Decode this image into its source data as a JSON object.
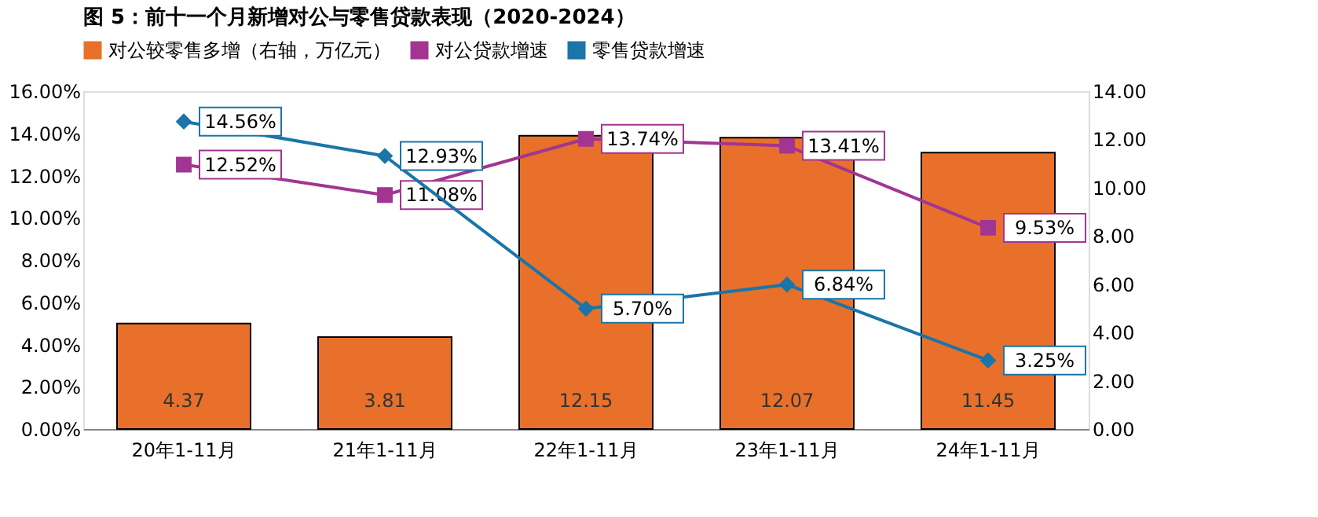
{
  "chart_data": {
    "type": "bar",
    "title": "图 5：前十一个月新增对公与零售贷款表现（2020-2024）",
    "categories": [
      "20年1-11月",
      "21年1-11月",
      "22年1-11月",
      "23年1-11月",
      "24年1-11月"
    ],
    "series": [
      {
        "name": "对公较零售多增（右轴，万亿元）",
        "axis": "y2",
        "color": "#e8702a",
        "values": [
          4.37,
          3.81,
          12.15,
          12.07,
          11.45
        ],
        "value_labels": [
          "4.37",
          "3.81",
          "12.15",
          "12.07",
          "11.45"
        ]
      },
      {
        "name": "对公贷款增速",
        "type": "line",
        "color": "#a23592",
        "marker": "square",
        "values": [
          12.52,
          11.08,
          13.74,
          13.41,
          9.53
        ],
        "value_labels": [
          "12.52%",
          "11.08%",
          "13.74%",
          "13.41%",
          "9.53%"
        ]
      },
      {
        "name": "零售贷款增速",
        "type": "line",
        "color": "#1a75a8",
        "marker": "diamond",
        "values": [
          14.56,
          12.93,
          5.7,
          6.84,
          3.25
        ],
        "value_labels": [
          "14.56%",
          "12.93%",
          "5.70%",
          "6.84%",
          "3.25%"
        ]
      }
    ],
    "ylim": [
      0,
      16
    ],
    "yticks": [
      {
        "value": 0,
        "label": "0.00%"
      },
      {
        "value": 2,
        "label": "2.00%"
      },
      {
        "value": 4,
        "label": "4.00%"
      },
      {
        "value": 6,
        "label": "6.00%"
      },
      {
        "value": 8,
        "label": "8.00%"
      },
      {
        "value": 10,
        "label": "10.00%"
      },
      {
        "value": 12,
        "label": "12.00%"
      },
      {
        "value": 14,
        "label": "14.00%"
      },
      {
        "value": 16,
        "label": "16.00%"
      }
    ],
    "y2lim": [
      0,
      14
    ],
    "y2ticks": [
      {
        "value": 0,
        "label": "0.00"
      },
      {
        "value": 2,
        "label": "2.00"
      },
      {
        "value": 4,
        "label": "4.00"
      },
      {
        "value": 6,
        "label": "6.00"
      },
      {
        "value": 8,
        "label": "8.00"
      },
      {
        "value": 10,
        "label": "10.00"
      },
      {
        "value": 12,
        "label": "12.00"
      },
      {
        "value": 14,
        "label": "14.00"
      }
    ],
    "legend": "top",
    "grid": false
  }
}
